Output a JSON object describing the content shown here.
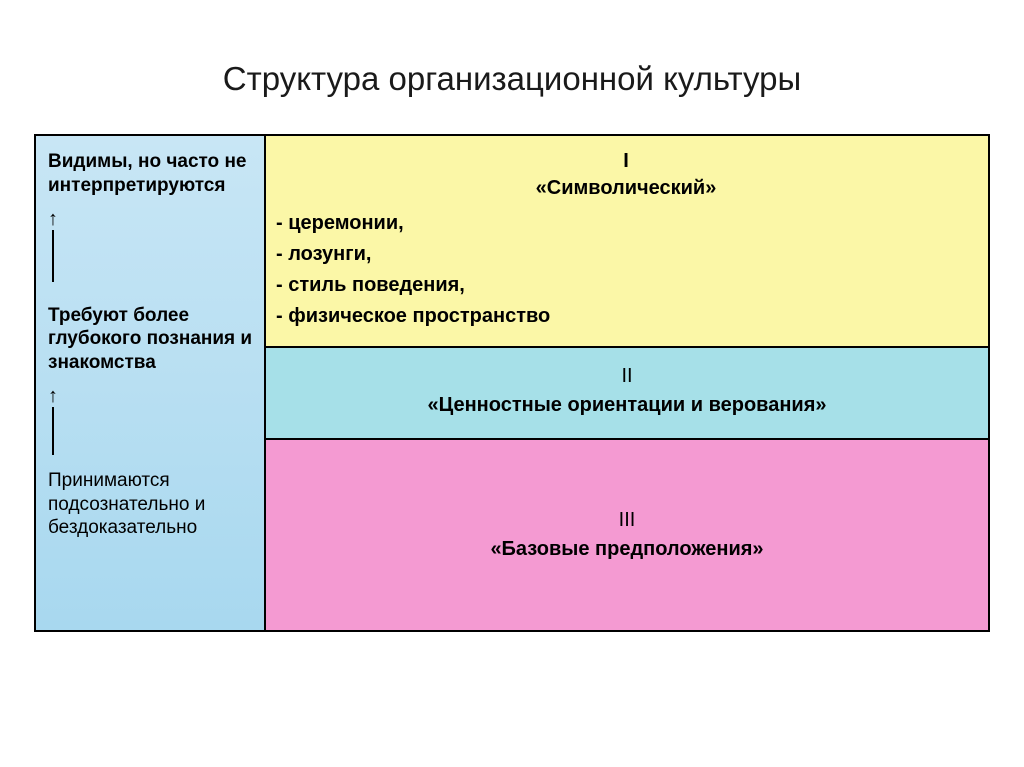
{
  "title": "Структура организационной культуры",
  "left": {
    "block1": "Видимы, но часто не интерпретируются",
    "block2": "Требуют более глубокого познания и знакомства",
    "block3": "Принимаются подсознательно и бездоказательно",
    "arrow_glyph": "↑"
  },
  "levels": {
    "l1": {
      "num": "I",
      "name": "«Символический»",
      "items": [
        "- церемонии,",
        "- лозунги,",
        "- стиль поведения,",
        "- физическое пространство"
      ]
    },
    "l2": {
      "num": "II",
      "name": "«Ценностные ориентации и верования»"
    },
    "l3": {
      "num": "III",
      "name": "«Базовые предположения»"
    }
  },
  "style": {
    "colors": {
      "left_bg_top": "#c8e6f5",
      "left_bg_bottom": "#a8d8ef",
      "row1_bg": "#fbf7a7",
      "row2_bg": "#a6e0e8",
      "row3_bg": "#f49ad2",
      "border": "#000000",
      "title_color": "#1a1a1a",
      "page_bg": "#ffffff"
    },
    "title_fontsize": 33,
    "body_fontsize": 20,
    "left_fontsize": 19,
    "left_col_width": 230,
    "layout": "two-column-three-row",
    "arrow_line_height_1": 52,
    "arrow_line_height_2": 48
  }
}
